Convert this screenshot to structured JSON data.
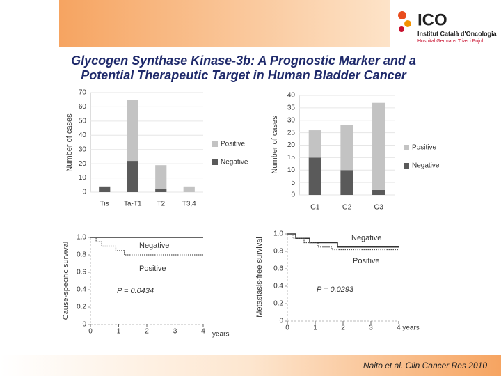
{
  "header": {
    "logo": "ICO",
    "institute": "Institut Català d'Oncologia",
    "hospital": "Hospital Germans Trias i Pujol"
  },
  "title": [
    "Glycogen Synthase Kinase-3b: A Prognostic Marker and a",
    "Potential Therapeutic Target in Human Bladder Cancer"
  ],
  "citation": "Naito et al. Clin Cancer Res 2010",
  "chart_data": [
    {
      "type": "bar",
      "stacked": true,
      "y_label": "Number of cases",
      "categories": [
        "Tis",
        "Ta-T1",
        "T2",
        "T3,4"
      ],
      "series": [
        {
          "name": "Negative",
          "color": "#5a5a5a",
          "values": [
            4,
            22,
            2,
            0
          ]
        },
        {
          "name": "Positive",
          "color": "#c3c3c3",
          "values": [
            0,
            43,
            17,
            4
          ]
        }
      ],
      "ylim": [
        0,
        70
      ],
      "yticks": [
        0,
        10,
        20,
        30,
        40,
        50,
        60,
        70
      ],
      "grid": true,
      "legend": "right"
    },
    {
      "type": "bar",
      "stacked": true,
      "y_label": "Number of cases",
      "categories": [
        "G1",
        "G2",
        "G3"
      ],
      "series": [
        {
          "name": "Negative",
          "color": "#5a5a5a",
          "values": [
            15,
            10,
            2
          ]
        },
        {
          "name": "Positive",
          "color": "#c3c3c3",
          "values": [
            11,
            18,
            35
          ]
        }
      ],
      "ylim": [
        0,
        40
      ],
      "yticks": [
        0,
        5,
        10,
        15,
        20,
        25,
        30,
        35,
        40
      ],
      "grid": true,
      "legend": "right"
    },
    {
      "type": "line",
      "step": true,
      "y_label": "Cause-specific survival",
      "x_label": "years",
      "series": [
        {
          "name": "Negative",
          "color": "#333333",
          "style": "solid",
          "x": [
            0,
            4
          ],
          "values": [
            1,
            1
          ]
        },
        {
          "name": "Positive",
          "color": "#555555",
          "style": "dotted",
          "x": [
            0,
            0.2,
            0.2,
            0.4,
            0.4,
            0.9,
            0.9,
            1.2,
            1.2,
            4
          ],
          "values": [
            1,
            1,
            0.95,
            0.95,
            0.9,
            0.9,
            0.85,
            0.85,
            0.8,
            0.8
          ]
        }
      ],
      "annotations": [
        "Negative",
        "Positive",
        "P = 0.0434"
      ],
      "xlim": [
        0,
        4
      ],
      "xticks": [
        0,
        1,
        2,
        3,
        4
      ],
      "ylim": [
        0,
        1
      ],
      "yticks": [
        0,
        0.2,
        0.4,
        0.6,
        0.8,
        {
          "value": 1,
          "label": "1.0"
        }
      ]
    },
    {
      "type": "line",
      "step": true,
      "y_label": "Metastasis-free survival",
      "series": [
        {
          "name": "Negative",
          "color": "#333333",
          "style": "solid",
          "x": [
            0,
            0.3,
            0.3,
            0.8,
            0.8,
            1.8,
            1.8,
            4
          ],
          "values": [
            1,
            1,
            0.95,
            0.95,
            0.9,
            0.9,
            0.85,
            0.85
          ]
        },
        {
          "name": "Positive",
          "color": "#555555",
          "style": "dotted",
          "x": [
            0,
            0.2,
            0.2,
            0.6,
            0.6,
            1.1,
            1.1,
            1.6,
            1.6,
            4
          ],
          "values": [
            1,
            1,
            0.95,
            0.95,
            0.9,
            0.9,
            0.85,
            0.85,
            0.82,
            0.82
          ]
        }
      ],
      "annotations": [
        "Negative",
        "Positive",
        "P = 0.0293"
      ],
      "xlim": [
        0,
        4
      ],
      "xticks": [
        0,
        1,
        2,
        3,
        {
          "value": 4,
          "label": "4 years"
        }
      ],
      "ylim": [
        0,
        1
      ],
      "yticks": [
        0,
        0.2,
        0.4,
        0.6,
        0.8,
        {
          "value": 1,
          "label": "1.0"
        }
      ]
    }
  ]
}
